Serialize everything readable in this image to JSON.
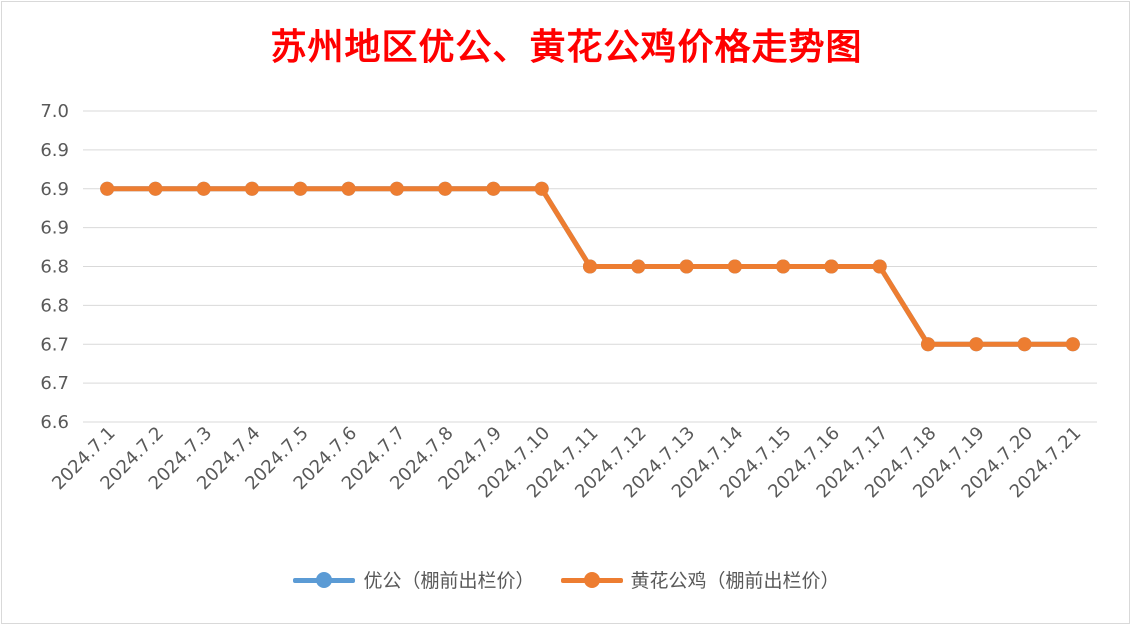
{
  "chart_data": {
    "type": "line",
    "title": "苏州地区优公、黄花公鸡价格走势图",
    "categories": [
      "2024.7.1",
      "2024.7.2",
      "2024.7.3",
      "2024.7.4",
      "2024.7.5",
      "2024.7.6",
      "2024.7.7",
      "2024.7.8",
      "2024.7.9",
      "2024.7.10",
      "2024.7.11",
      "2024.7.12",
      "2024.7.13",
      "2024.7.14",
      "2024.7.15",
      "2024.7.16",
      "2024.7.17",
      "2024.7.18",
      "2024.7.19",
      "2024.7.20",
      "2024.7.21"
    ],
    "ylim": [
      6.6,
      7.0
    ],
    "y_ticks": [
      6.6,
      6.65,
      6.7,
      6.75,
      6.8,
      6.85,
      6.9,
      6.95,
      7.0
    ],
    "y_tick_labels": [
      "6.6",
      "6.7",
      "6.7",
      "6.8",
      "6.8",
      "6.9",
      "6.9",
      "6.9",
      "7.0"
    ],
    "grid": true,
    "legend_position": "bottom",
    "series": [
      {
        "name": "优公（棚前出栏价）",
        "color": "#5b9bd5",
        "values": [
          6.9,
          6.9,
          6.9,
          6.9,
          6.9,
          6.9,
          6.9,
          6.9,
          6.9,
          6.9,
          6.8,
          6.8,
          6.8,
          6.8,
          6.8,
          6.8,
          6.8,
          6.7,
          6.7,
          6.7,
          6.7
        ]
      },
      {
        "name": "黄花公鸡（棚前出栏价）",
        "color": "#ed7d31",
        "values": [
          6.9,
          6.9,
          6.9,
          6.9,
          6.9,
          6.9,
          6.9,
          6.9,
          6.9,
          6.9,
          6.8,
          6.8,
          6.8,
          6.8,
          6.8,
          6.8,
          6.8,
          6.7,
          6.7,
          6.7,
          6.7
        ]
      }
    ]
  }
}
